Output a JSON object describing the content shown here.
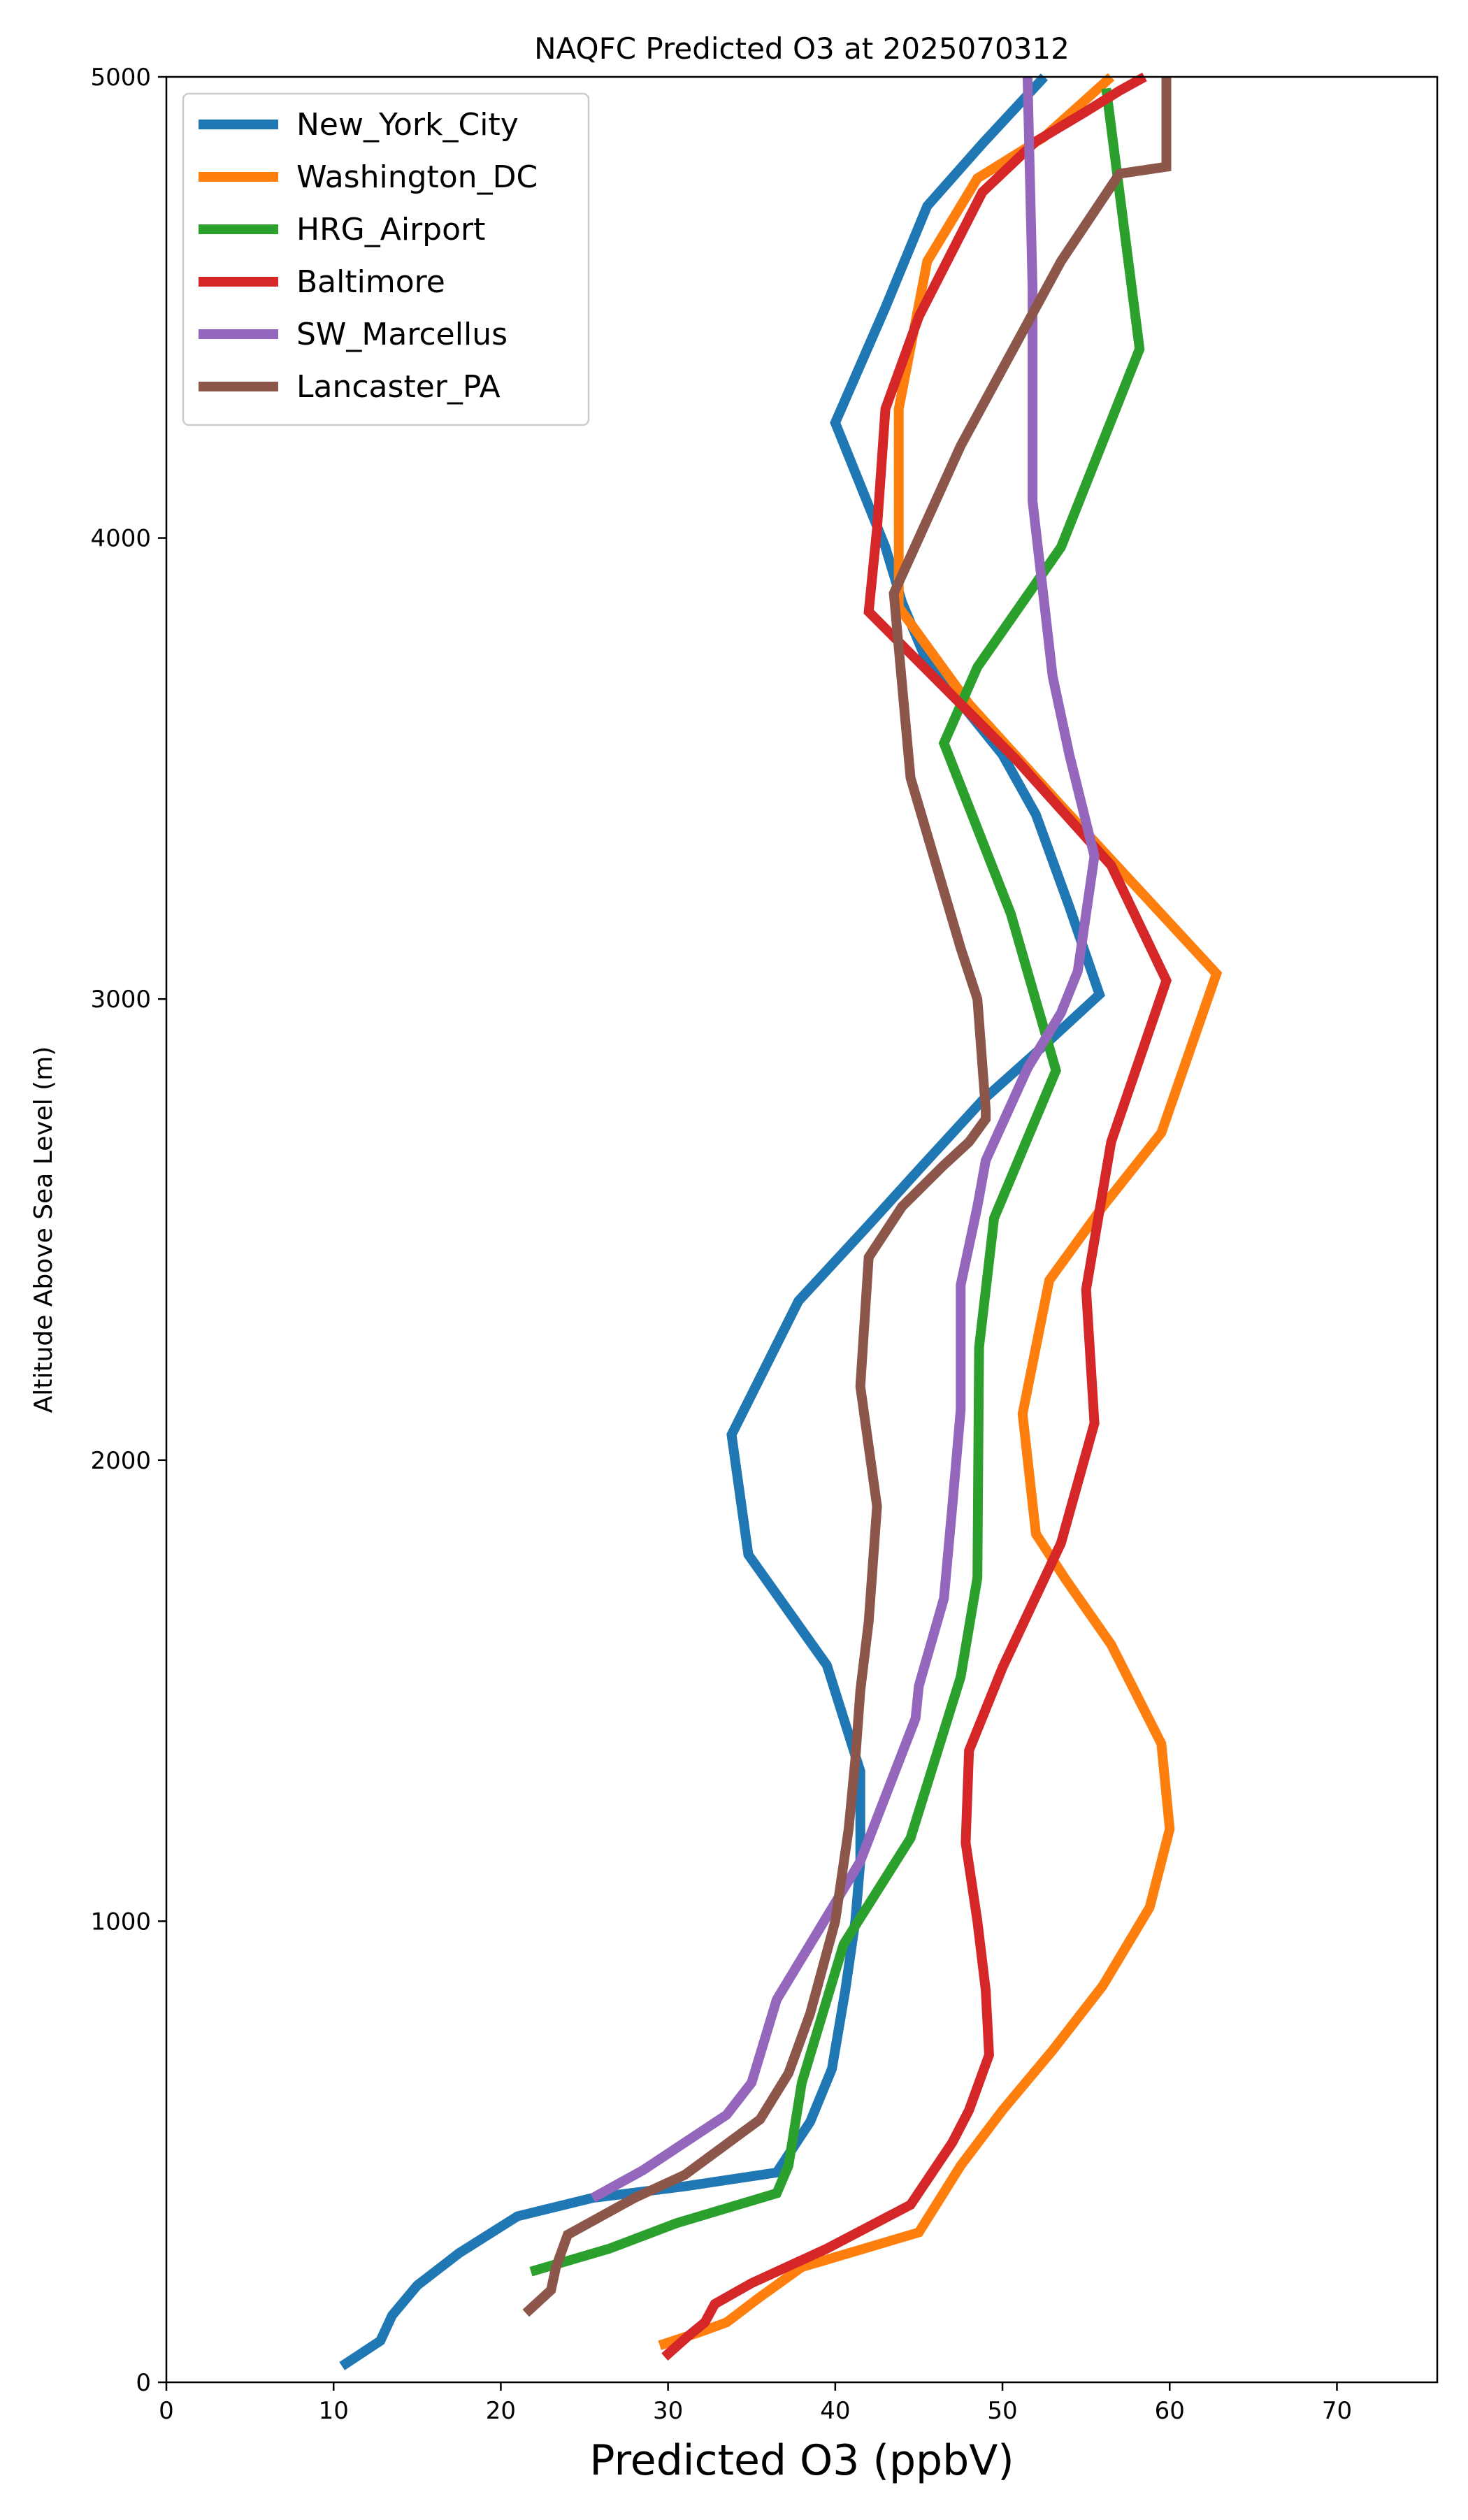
{
  "chart_data": {
    "type": "line",
    "title": "NAQFC Predicted O3 at 2025070312",
    "xlabel": "Predicted O3 (ppbV)",
    "ylabel": "Altitude Above Sea Level (m)",
    "xlim": [
      0,
      76
    ],
    "ylim": [
      0,
      5000
    ],
    "xticks": [
      0,
      10,
      20,
      30,
      40,
      50,
      60,
      70
    ],
    "yticks": [
      0,
      1000,
      2000,
      3000,
      4000,
      5000
    ],
    "grid": false,
    "legend_position": "top-left",
    "series": [
      {
        "name": "New_York_City",
        "color": "#1f77b4",
        "points": [
          [
            10.5,
            35
          ],
          [
            12.8,
            90
          ],
          [
            13.5,
            145
          ],
          [
            15.0,
            210
          ],
          [
            17.5,
            280
          ],
          [
            21.0,
            360
          ],
          [
            25.5,
            400
          ],
          [
            31.0,
            425
          ],
          [
            36.5,
            455
          ],
          [
            38.5,
            565
          ],
          [
            39.8,
            680
          ],
          [
            40.6,
            850
          ],
          [
            41.2,
            1000
          ],
          [
            41.5,
            1130
          ],
          [
            41.5,
            1325
          ],
          [
            39.5,
            1555
          ],
          [
            34.8,
            1795
          ],
          [
            33.8,
            2055
          ],
          [
            37.8,
            2345
          ],
          [
            42.0,
            2510
          ],
          [
            45.0,
            2630
          ],
          [
            48.8,
            2780
          ],
          [
            52.5,
            2900
          ],
          [
            55.8,
            3010
          ],
          [
            54.0,
            3200
          ],
          [
            52.0,
            3400
          ],
          [
            50.0,
            3530
          ],
          [
            48.0,
            3620
          ],
          [
            45.5,
            3730
          ],
          [
            44.0,
            3860
          ],
          [
            43.0,
            3980
          ],
          [
            40.0,
            4250
          ],
          [
            43.0,
            4500
          ],
          [
            45.5,
            4720
          ],
          [
            48.8,
            4855
          ],
          [
            52.5,
            5000
          ]
        ]
      },
      {
        "name": "Washington_DC",
        "color": "#ff7f0e",
        "points": [
          [
            29.5,
            80
          ],
          [
            32.0,
            110
          ],
          [
            33.5,
            130
          ],
          [
            35.5,
            185
          ],
          [
            38.0,
            250
          ],
          [
            45.0,
            325
          ],
          [
            47.5,
            470
          ],
          [
            50.0,
            590
          ],
          [
            53.0,
            720
          ],
          [
            56.0,
            860
          ],
          [
            58.8,
            1030
          ],
          [
            60.0,
            1200
          ],
          [
            59.5,
            1385
          ],
          [
            56.5,
            1600
          ],
          [
            53.8,
            1740
          ],
          [
            52.0,
            1840
          ],
          [
            51.2,
            2100
          ],
          [
            52.8,
            2390
          ],
          [
            56.0,
            2550
          ],
          [
            59.5,
            2710
          ],
          [
            62.8,
            3055
          ],
          [
            53.5,
            3420
          ],
          [
            48.0,
            3640
          ],
          [
            43.8,
            3850
          ],
          [
            43.8,
            4280
          ],
          [
            45.5,
            4600
          ],
          [
            48.5,
            4780
          ],
          [
            52.5,
            4870
          ],
          [
            56.5,
            5000
          ]
        ]
      },
      {
        "name": "HRG_Airport",
        "color": "#2ca02c",
        "points": [
          [
            21.8,
            240
          ],
          [
            26.5,
            290
          ],
          [
            30.5,
            345
          ],
          [
            36.5,
            410
          ],
          [
            37.2,
            470
          ],
          [
            38.0,
            650
          ],
          [
            40.5,
            950
          ],
          [
            44.5,
            1180
          ],
          [
            47.5,
            1530
          ],
          [
            48.5,
            1745
          ],
          [
            48.6,
            2245
          ],
          [
            49.5,
            2525
          ],
          [
            53.2,
            2845
          ],
          [
            50.5,
            3185
          ],
          [
            46.5,
            3555
          ],
          [
            48.5,
            3720
          ],
          [
            53.5,
            3980
          ],
          [
            58.2,
            4410
          ],
          [
            56.2,
            4975
          ]
        ]
      },
      {
        "name": "Baltimore",
        "color": "#d62728",
        "points": [
          [
            29.8,
            55
          ],
          [
            31.2,
            100
          ],
          [
            32.2,
            130
          ],
          [
            32.8,
            170
          ],
          [
            35.0,
            215
          ],
          [
            39.5,
            290
          ],
          [
            44.5,
            385
          ],
          [
            47.0,
            520
          ],
          [
            48.0,
            590
          ],
          [
            49.2,
            710
          ],
          [
            49.0,
            850
          ],
          [
            48.5,
            1000
          ],
          [
            47.8,
            1170
          ],
          [
            48.0,
            1370
          ],
          [
            50.0,
            1550
          ],
          [
            53.5,
            1820
          ],
          [
            55.5,
            2080
          ],
          [
            55.0,
            2370
          ],
          [
            56.5,
            2690
          ],
          [
            59.8,
            3040
          ],
          [
            56.5,
            3290
          ],
          [
            50.8,
            3520
          ],
          [
            42.0,
            3840
          ],
          [
            42.5,
            4020
          ],
          [
            43.0,
            4280
          ],
          [
            45.0,
            4480
          ],
          [
            48.8,
            4750
          ],
          [
            52.0,
            4860
          ],
          [
            55.0,
            4925
          ],
          [
            57.0,
            4970
          ],
          [
            58.5,
            5000
          ]
        ]
      },
      {
        "name": "SW_Marcellus",
        "color": "#9467bd",
        "points": [
          [
            25.5,
            400
          ],
          [
            28.5,
            460
          ],
          [
            33.5,
            580
          ],
          [
            35.0,
            650
          ],
          [
            36.5,
            830
          ],
          [
            41.5,
            1130
          ],
          [
            44.8,
            1440
          ],
          [
            45.0,
            1510
          ],
          [
            46.5,
            1700
          ],
          [
            47.0,
            1900
          ],
          [
            47.5,
            2110
          ],
          [
            47.5,
            2380
          ],
          [
            48.5,
            2550
          ],
          [
            49.0,
            2650
          ],
          [
            51.5,
            2850
          ],
          [
            53.5,
            2970
          ],
          [
            54.5,
            3060
          ],
          [
            55.5,
            3310
          ],
          [
            54.0,
            3530
          ],
          [
            53.0,
            3700
          ],
          [
            51.8,
            4080
          ],
          [
            51.8,
            4540
          ],
          [
            51.5,
            5000
          ]
        ]
      },
      {
        "name": "Lancaster_PA",
        "color": "#8c564b",
        "points": [
          [
            21.5,
            150
          ],
          [
            23.0,
            200
          ],
          [
            23.3,
            250
          ],
          [
            23.5,
            270
          ],
          [
            24.0,
            320
          ],
          [
            28.0,
            400
          ],
          [
            31.0,
            450
          ],
          [
            35.5,
            570
          ],
          [
            37.2,
            670
          ],
          [
            38.5,
            800
          ],
          [
            40.0,
            1000
          ],
          [
            40.8,
            1200
          ],
          [
            41.2,
            1350
          ],
          [
            41.5,
            1500
          ],
          [
            42.0,
            1650
          ],
          [
            42.5,
            1900
          ],
          [
            41.5,
            2160
          ],
          [
            42.0,
            2440
          ],
          [
            44.0,
            2550
          ],
          [
            46.5,
            2640
          ],
          [
            48.0,
            2690
          ],
          [
            49.0,
            2740
          ],
          [
            49.0,
            2760
          ],
          [
            48.5,
            3000
          ],
          [
            47.5,
            3110
          ],
          [
            44.5,
            3480
          ],
          [
            43.5,
            3880
          ],
          [
            47.5,
            4200
          ],
          [
            50.5,
            4400
          ],
          [
            53.5,
            4600
          ],
          [
            57.0,
            4790
          ],
          [
            59.8,
            4805
          ],
          [
            59.8,
            5000
          ]
        ]
      }
    ]
  }
}
